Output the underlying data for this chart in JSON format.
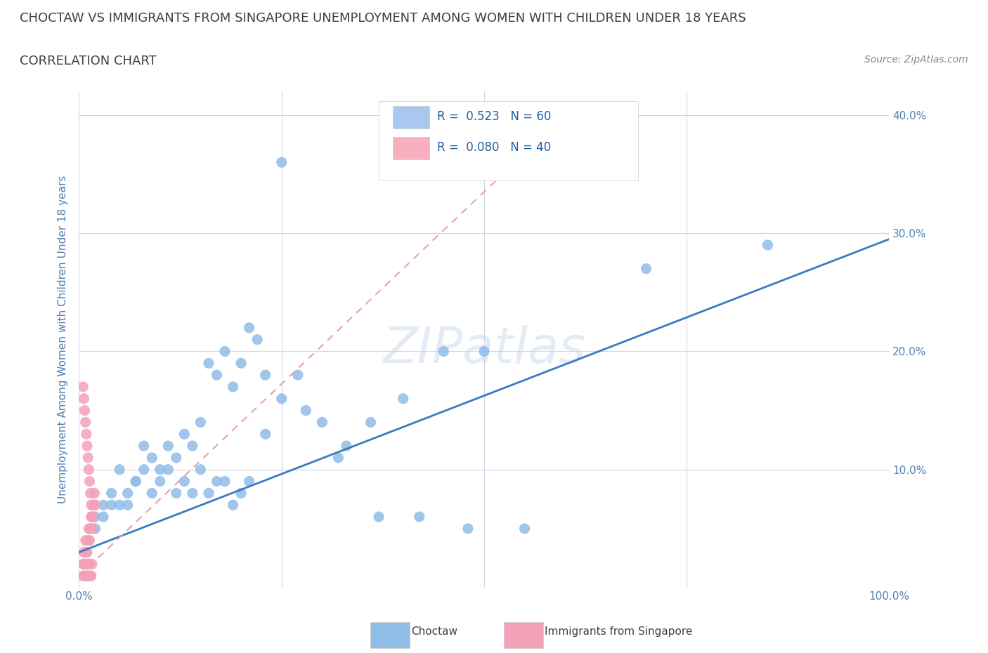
{
  "title": "CHOCTAW VS IMMIGRANTS FROM SINGAPORE UNEMPLOYMENT AMONG WOMEN WITH CHILDREN UNDER 18 YEARS",
  "subtitle": "CORRELATION CHART",
  "source": "Source: ZipAtlas.com",
  "ylabel": "Unemployment Among Women with Children Under 18 years",
  "watermark": "ZIPatlas",
  "legend_entries": [
    {
      "label": "Choctaw",
      "color": "#a8c8f0",
      "R": 0.523,
      "N": 60
    },
    {
      "label": "Immigrants from Singapore",
      "color": "#f8b0c0",
      "R": 0.08,
      "N": 40
    }
  ],
  "choctaw_x": [
    0.02,
    0.03,
    0.04,
    0.05,
    0.06,
    0.07,
    0.08,
    0.09,
    0.1,
    0.11,
    0.12,
    0.13,
    0.14,
    0.15,
    0.16,
    0.17,
    0.18,
    0.19,
    0.2,
    0.21,
    0.22,
    0.23,
    0.25,
    0.27,
    0.3,
    0.33,
    0.36,
    0.4,
    0.45,
    0.5,
    0.02,
    0.03,
    0.04,
    0.05,
    0.06,
    0.07,
    0.08,
    0.09,
    0.1,
    0.11,
    0.12,
    0.13,
    0.14,
    0.15,
    0.16,
    0.17,
    0.18,
    0.19,
    0.2,
    0.21,
    0.23,
    0.25,
    0.28,
    0.32,
    0.37,
    0.42,
    0.48,
    0.55,
    0.7,
    0.85
  ],
  "choctaw_y": [
    0.05,
    0.07,
    0.08,
    0.1,
    0.07,
    0.09,
    0.12,
    0.08,
    0.09,
    0.1,
    0.11,
    0.13,
    0.12,
    0.14,
    0.19,
    0.18,
    0.2,
    0.17,
    0.19,
    0.22,
    0.21,
    0.18,
    0.16,
    0.18,
    0.14,
    0.12,
    0.14,
    0.16,
    0.2,
    0.2,
    0.06,
    0.06,
    0.07,
    0.07,
    0.08,
    0.09,
    0.1,
    0.11,
    0.1,
    0.12,
    0.08,
    0.09,
    0.08,
    0.1,
    0.08,
    0.09,
    0.09,
    0.07,
    0.08,
    0.09,
    0.13,
    0.36,
    0.15,
    0.11,
    0.06,
    0.06,
    0.05,
    0.05,
    0.27,
    0.29
  ],
  "singapore_x": [
    0.005,
    0.006,
    0.007,
    0.008,
    0.009,
    0.01,
    0.011,
    0.012,
    0.013,
    0.014,
    0.015,
    0.016,
    0.017,
    0.018,
    0.019,
    0.02,
    0.005,
    0.006,
    0.007,
    0.008,
    0.009,
    0.01,
    0.011,
    0.012,
    0.013,
    0.014,
    0.015,
    0.016,
    0.005,
    0.006,
    0.007,
    0.008,
    0.009,
    0.01,
    0.011,
    0.012,
    0.013,
    0.014,
    0.015,
    0.016
  ],
  "singapore_y": [
    0.02,
    0.03,
    0.02,
    0.04,
    0.03,
    0.03,
    0.04,
    0.05,
    0.04,
    0.05,
    0.06,
    0.05,
    0.06,
    0.07,
    0.08,
    0.07,
    0.17,
    0.16,
    0.15,
    0.14,
    0.13,
    0.12,
    0.11,
    0.1,
    0.09,
    0.08,
    0.07,
    0.06,
    0.01,
    0.01,
    0.02,
    0.02,
    0.01,
    0.02,
    0.01,
    0.01,
    0.02,
    0.01,
    0.01,
    0.02
  ],
  "xlim": [
    0.0,
    1.0
  ],
  "ylim": [
    0.0,
    0.42
  ],
  "yticks": [
    0.0,
    0.1,
    0.2,
    0.3,
    0.4
  ],
  "ytick_labels": [
    "",
    "10.0%",
    "20.0%",
    "30.0%",
    "40.0%"
  ],
  "xticks": [
    0.0,
    0.25,
    0.5,
    0.75,
    1.0
  ],
  "xtick_labels": [
    "0.0%",
    "",
    "",
    "",
    "100.0%"
  ],
  "blue_line_color": "#3a7abf",
  "pink_line_color": "#e8a0b0",
  "scatter_blue": "#90bce8",
  "scatter_pink": "#f4a0b8",
  "grid_color": "#d0d8e8",
  "background_color": "#ffffff",
  "title_color": "#404040",
  "axis_label_color": "#5080b0"
}
